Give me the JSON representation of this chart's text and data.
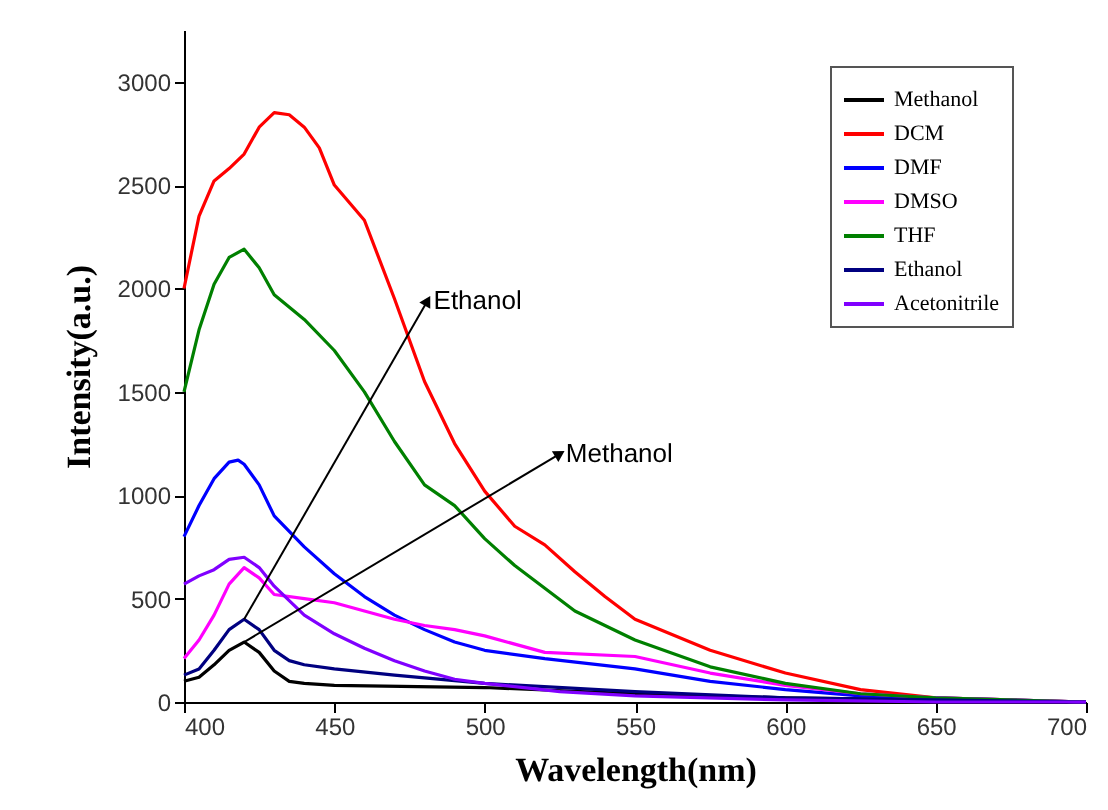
{
  "chart_data": {
    "type": "line",
    "xlabel": "Wavelength(nm)",
    "ylabel": "Intensity(a.u.)",
    "xlim": [
      400,
      700
    ],
    "xticks": [
      400,
      450,
      500,
      550,
      600,
      650,
      700
    ],
    "ylim": [
      0,
      3250
    ],
    "yticks": [
      0,
      500,
      1000,
      1500,
      2000,
      2500,
      3000
    ],
    "grid": false,
    "legend": "top right",
    "marker": "none",
    "line_style": "solid",
    "series": [
      {
        "name": "Methanol",
        "color": "#000000",
        "x": [
          400,
          405,
          410,
          415,
          420,
          425,
          430,
          435,
          440,
          450,
          500,
          550,
          600,
          650,
          700
        ],
        "values": [
          100,
          120,
          180,
          250,
          290,
          240,
          150,
          100,
          90,
          80,
          70,
          40,
          20,
          10,
          0
        ]
      },
      {
        "name": "DCM",
        "color": "#ff0000",
        "x": [
          400,
          405,
          410,
          415,
          420,
          425,
          430,
          435,
          440,
          445,
          450,
          460,
          470,
          480,
          490,
          500,
          510,
          520,
          530,
          540,
          550,
          575,
          600,
          625,
          650,
          675,
          700
        ],
        "values": [
          2000,
          2350,
          2520,
          2580,
          2650,
          2780,
          2850,
          2840,
          2780,
          2680,
          2500,
          2330,
          1950,
          1550,
          1250,
          1020,
          850,
          760,
          630,
          510,
          400,
          250,
          140,
          60,
          20,
          10,
          0
        ]
      },
      {
        "name": "DMF",
        "color": "#0000ff",
        "x": [
          400,
          405,
          410,
          415,
          418,
          420,
          425,
          430,
          440,
          450,
          460,
          470,
          480,
          490,
          500,
          520,
          550,
          575,
          600,
          625,
          650,
          700
        ],
        "values": [
          800,
          950,
          1080,
          1160,
          1170,
          1150,
          1050,
          900,
          750,
          620,
          510,
          420,
          350,
          290,
          250,
          210,
          160,
          100,
          60,
          30,
          20,
          0
        ]
      },
      {
        "name": "DMSO",
        "color": "#ff00ff",
        "x": [
          400,
          405,
          410,
          415,
          420,
          425,
          430,
          440,
          450,
          460,
          470,
          480,
          490,
          500,
          510,
          520,
          550,
          575,
          600,
          625,
          650,
          700
        ],
        "values": [
          210,
          300,
          420,
          570,
          650,
          600,
          520,
          500,
          480,
          440,
          400,
          370,
          350,
          320,
          280,
          240,
          220,
          140,
          80,
          40,
          20,
          0
        ]
      },
      {
        "name": "THF",
        "color": "#008000",
        "x": [
          400,
          405,
          410,
          415,
          420,
          425,
          430,
          440,
          450,
          460,
          470,
          480,
          490,
          500,
          510,
          520,
          530,
          550,
          575,
          600,
          625,
          650,
          700
        ],
        "values": [
          1500,
          1800,
          2020,
          2150,
          2190,
          2100,
          1970,
          1850,
          1700,
          1500,
          1260,
          1050,
          950,
          790,
          660,
          550,
          440,
          300,
          170,
          90,
          40,
          20,
          0
        ]
      },
      {
        "name": "Ethanol",
        "color": "#000080",
        "x": [
          400,
          405,
          410,
          415,
          420,
          425,
          430,
          435,
          440,
          450,
          470,
          500,
          550,
          600,
          650,
          700
        ],
        "values": [
          130,
          160,
          250,
          350,
          400,
          350,
          250,
          200,
          180,
          160,
          130,
          90,
          50,
          20,
          10,
          0
        ]
      },
      {
        "name": "Acetonitrile",
        "color": "#8000ff",
        "x": [
          400,
          405,
          410,
          415,
          420,
          425,
          430,
          440,
          450,
          460,
          470,
          480,
          490,
          500,
          525,
          550,
          600,
          650,
          700
        ],
        "values": [
          570,
          610,
          640,
          690,
          700,
          650,
          560,
          420,
          330,
          260,
          200,
          150,
          110,
          90,
          50,
          30,
          10,
          0,
          0
        ]
      }
    ],
    "annotations": [
      {
        "text": "Ethanol",
        "x": 481,
        "y": 1940
      },
      {
        "text": "Methanol",
        "x": 525,
        "y": 1200
      }
    ]
  }
}
